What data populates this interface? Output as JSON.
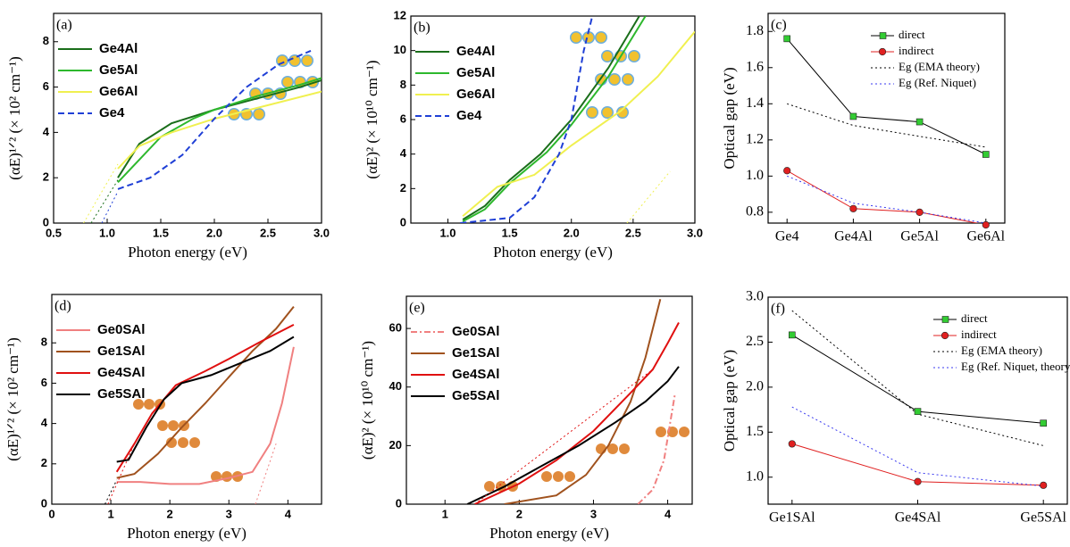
{
  "chart_data": [
    {
      "type": "line",
      "label": "(a)",
      "xlabel": "Photon energy (eV)",
      "ylabel": "(αE)¹ᐟ² (× 10² cm⁻¹)",
      "xlim": [
        0.5,
        3.0
      ],
      "ylim": [
        0,
        9.25
      ],
      "xticks": [
        0.5,
        {
          "value": 1.0,
          "label": "1.0"
        },
        1.5,
        {
          "value": 2.0,
          "label": "2.0"
        },
        2.5,
        {
          "value": 3.0,
          "label": "3.0"
        }
      ],
      "yticks": [
        0,
        2,
        4,
        6,
        8
      ],
      "legend": "upper left",
      "series": [
        {
          "name": "Ge4Al",
          "color": "#1a6e1a",
          "x": [
            1.1,
            1.3,
            1.6,
            2.0,
            2.4,
            2.8,
            3.0
          ],
          "values": [
            2.0,
            3.5,
            4.4,
            5.0,
            5.5,
            6.0,
            6.3
          ]
        },
        {
          "name": "Ge5Al",
          "color": "#2db82d",
          "x": [
            1.1,
            1.3,
            1.5,
            1.8,
            2.0,
            2.4,
            2.8,
            3.0
          ],
          "values": [
            1.8,
            2.8,
            3.8,
            4.6,
            5.0,
            5.6,
            6.1,
            6.4
          ]
        },
        {
          "name": "Ge6Al",
          "color": "#f0f050",
          "x": [
            1.1,
            1.3,
            1.6,
            2.0,
            2.5,
            3.0
          ],
          "values": [
            2.4,
            3.4,
            4.0,
            4.6,
            5.2,
            5.8
          ]
        },
        {
          "name": "Ge4",
          "color": "#1f3fd6",
          "dash": "dash",
          "x": [
            1.1,
            1.4,
            1.7,
            2.0,
            2.3,
            2.6,
            2.9
          ],
          "values": [
            1.5,
            2.0,
            3.0,
            4.6,
            6.0,
            7.0,
            7.6
          ]
        },
        {
          "color": "#1a6e1a",
          "dash": "dot",
          "x": [
            0.85,
            1.1
          ],
          "values": [
            0,
            1.9
          ]
        },
        {
          "color": "#f0f050",
          "dash": "dot",
          "x": [
            0.78,
            1.1
          ],
          "values": [
            0,
            2.6
          ]
        },
        {
          "color": "#1f3fd6",
          "dash": "dot",
          "x": [
            0.95,
            1.1
          ],
          "values": [
            0,
            1.4
          ]
        }
      ]
    },
    {
      "type": "line",
      "label": "(b)",
      "xlabel": "Photon energy (eV)",
      "ylabel": "(αE)² (× 10¹⁰ cm⁻¹)",
      "xlim": [
        0.7,
        3.0
      ],
      "ylim": [
        0,
        12
      ],
      "xticks": [
        {
          "value": 1.0,
          "label": "1.0"
        },
        1.5,
        {
          "value": 2.0,
          "label": "2.0"
        },
        2.5,
        {
          "value": 3.0,
          "label": "3.0"
        }
      ],
      "yticks": [
        0,
        2,
        4,
        6,
        8,
        10,
        12
      ],
      "legend": "upper left",
      "series": [
        {
          "name": "Ge4Al",
          "color": "#1a6e1a",
          "x": [
            1.12,
            1.3,
            1.5,
            1.75,
            2.0,
            2.3,
            2.55
          ],
          "values": [
            0.2,
            1.0,
            2.5,
            4.0,
            6.0,
            9.0,
            12.0
          ]
        },
        {
          "name": "Ge5Al",
          "color": "#2db82d",
          "x": [
            1.12,
            1.3,
            1.5,
            1.8,
            2.0,
            2.3,
            2.6
          ],
          "values": [
            0.1,
            0.8,
            2.3,
            4.1,
            5.7,
            8.5,
            12.0
          ]
        },
        {
          "name": "Ge6Al",
          "color": "#f0f050",
          "x": [
            1.12,
            1.4,
            1.7,
            2.0,
            2.4,
            2.7,
            3.0
          ],
          "values": [
            0.4,
            2.1,
            2.8,
            4.5,
            6.5,
            8.5,
            11.1
          ]
        },
        {
          "name": "Ge4",
          "color": "#1f3fd6",
          "dash": "dash",
          "x": [
            1.1,
            1.5,
            1.7,
            1.9,
            2.0,
            2.1,
            2.17
          ],
          "values": [
            0,
            0.3,
            1.5,
            4.0,
            6.0,
            10.0,
            12.0
          ]
        },
        {
          "color": "#f0f050",
          "dash": "dot",
          "x": [
            2.45,
            2.8
          ],
          "values": [
            0,
            3.0
          ]
        }
      ]
    },
    {
      "type": "line",
      "label": "(c)",
      "ylabel": "Optical gap (eV)",
      "categories": [
        "Ge4",
        "Ge4Al",
        "Ge5Al",
        "Ge6Al"
      ],
      "ylim": [
        0.74,
        1.9
      ],
      "yticks": [
        0.8,
        {
          "value": 1.0,
          "label": "1.0"
        },
        1.2,
        1.4,
        1.6,
        1.8
      ],
      "legend": "upper right",
      "series": [
        {
          "name": "direct",
          "color": "#000000",
          "marker": "square",
          "marker_color": "#33cc33",
          "values": [
            1.76,
            1.33,
            1.3,
            1.12
          ]
        },
        {
          "name": "indirect",
          "color": "#e02020",
          "marker": "circle",
          "marker_color": "#e02020",
          "values": [
            1.03,
            0.82,
            0.8,
            0.73
          ]
        },
        {
          "name": "Eg (EMA theory)",
          "color": "#000000",
          "dash": "dot",
          "values": [
            1.4,
            1.28,
            1.22,
            1.16
          ]
        },
        {
          "name": "Eg (Ref. Niquet)",
          "color": "#3a3af0",
          "dash": "dot",
          "values": [
            1.0,
            0.85,
            0.8,
            0.74
          ]
        }
      ]
    },
    {
      "type": "line",
      "label": "(d)",
      "xlabel": "Photon energy (eV)",
      "ylabel": "(αE)¹ᐟ² (× 10² cm⁻¹)",
      "xlim": [
        0,
        4.57
      ],
      "ylim": [
        0,
        10.4
      ],
      "xticks": [
        0,
        1,
        2,
        3,
        4
      ],
      "yticks": [
        0,
        2,
        4,
        6,
        8
      ],
      "legend": "upper left",
      "series": [
        {
          "name": "Ge0SAl",
          "color": "#f08080",
          "x": [
            1.1,
            1.5,
            2.0,
            2.5,
            3.0,
            3.4,
            3.7,
            3.9,
            4.1
          ],
          "values": [
            1.1,
            1.1,
            1.0,
            1.0,
            1.3,
            1.6,
            3.0,
            5.0,
            7.8
          ]
        },
        {
          "name": "Ge1SAl",
          "color": "#a0521e",
          "x": [
            1.1,
            1.4,
            1.8,
            2.2,
            2.6,
            3.0,
            3.4,
            3.8,
            4.1
          ],
          "values": [
            1.3,
            1.5,
            2.5,
            3.8,
            5.0,
            6.3,
            7.6,
            8.7,
            9.8
          ]
        },
        {
          "name": "Ge4SAl",
          "color": "#e01010",
          "x": [
            1.1,
            1.4,
            1.7,
            2.1,
            2.6,
            3.0,
            3.5,
            4.1
          ],
          "values": [
            1.6,
            3.0,
            4.5,
            5.9,
            6.6,
            7.2,
            8.0,
            8.9
          ]
        },
        {
          "name": "Ge5SAl",
          "color": "#000000",
          "x": [
            1.1,
            1.3,
            1.6,
            1.9,
            2.2,
            2.7,
            3.2,
            3.7,
            4.1
          ],
          "values": [
            2.1,
            2.2,
            3.8,
            5.2,
            6.0,
            6.4,
            7.0,
            7.6,
            8.3
          ]
        },
        {
          "color": "#e01010",
          "dash": "dot",
          "x": [
            0.95,
            1.4
          ],
          "values": [
            0,
            3.0
          ]
        },
        {
          "color": "#000000",
          "dash": "dot",
          "x": [
            0.9,
            1.1
          ],
          "values": [
            0,
            1.2
          ]
        },
        {
          "color": "#f08080",
          "dash": "dot",
          "x": [
            3.45,
            3.8
          ],
          "values": [
            0,
            3.0
          ]
        }
      ]
    },
    {
      "type": "line",
      "label": "(e)",
      "xlabel": "Photon energy (eV)",
      "ylabel": "(αE)² (× 10¹⁰ cm⁻¹)",
      "xlim": [
        0.48,
        4.33
      ],
      "ylim": [
        0,
        71
      ],
      "xticks": [
        1,
        2,
        3,
        4
      ],
      "yticks": [
        0,
        20,
        40,
        60
      ],
      "legend": "upper left",
      "series": [
        {
          "name": "Ge0SAl",
          "color": "#f08080",
          "dash": "dashdot",
          "x": [
            3.6,
            3.8,
            3.95,
            4.1
          ],
          "values": [
            0,
            5,
            15,
            38
          ]
        },
        {
          "name": "Ge1SAl",
          "color": "#a0521e",
          "x": [
            1.8,
            2.5,
            2.9,
            3.2,
            3.5,
            3.7,
            3.9
          ],
          "values": [
            0,
            3,
            10,
            20,
            35,
            50,
            70
          ]
        },
        {
          "name": "Ge4SAl",
          "color": "#e01010",
          "x": [
            1.4,
            2.0,
            2.5,
            3.0,
            3.5,
            3.8,
            4.0,
            4.15
          ],
          "values": [
            0,
            7,
            15,
            25,
            38,
            46,
            55,
            62
          ]
        },
        {
          "name": "Ge5SAl",
          "color": "#000000",
          "x": [
            1.3,
            1.8,
            2.3,
            2.8,
            3.3,
            3.7,
            4.0,
            4.15
          ],
          "values": [
            0,
            6,
            13,
            20,
            28,
            35,
            42,
            47
          ]
        },
        {
          "color": "#e01010",
          "dash": "dot",
          "x": [
            1.4,
            3.8
          ],
          "values": [
            0,
            46
          ]
        }
      ]
    },
    {
      "type": "line",
      "label": "(f)",
      "ylabel": "Optical gap (eV)",
      "categories": [
        "Ge1SAl",
        "Ge4SAl",
        "Ge5SAl"
      ],
      "ylim": [
        0.7,
        3.0
      ],
      "yticks": [
        {
          "value": 1.0,
          "label": "1.0"
        },
        1.5,
        {
          "value": 2.0,
          "label": "2.0"
        },
        2.5,
        {
          "value": 3.0,
          "label": "3.0"
        }
      ],
      "legend": "upper right",
      "series": [
        {
          "name": "direct",
          "color": "#000000",
          "marker": "square",
          "marker_color": "#33cc33",
          "values": [
            2.58,
            1.73,
            1.6
          ]
        },
        {
          "name": "indirect",
          "color": "#e02020",
          "marker": "circle",
          "marker_color": "#e02020",
          "values": [
            1.37,
            0.95,
            0.91
          ]
        },
        {
          "name": "Eg (EMA theory)",
          "color": "#000000",
          "dash": "dot",
          "values": [
            2.85,
            1.7,
            1.35
          ]
        },
        {
          "name": "Eg (Ref. Niquet, theory)",
          "color": "#3a3af0",
          "dash": "dot",
          "values": [
            1.78,
            1.05,
            0.9
          ]
        }
      ]
    }
  ]
}
